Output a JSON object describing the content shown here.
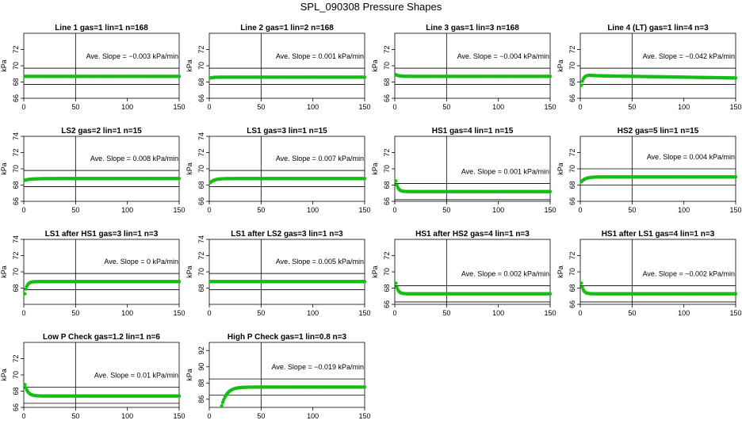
{
  "figure_title": "SPL_090308  Pressure Shapes",
  "colors": {
    "points": "#00cc00",
    "point_edge": "#33aa33",
    "lines": "#000000"
  },
  "chart_data": [
    {
      "type": "scatter",
      "title": "Line 1 gas=1 lin=1 n=168",
      "ylabel": "kPa",
      "xlim": [
        0,
        150
      ],
      "ylim": [
        66,
        74
      ],
      "yticks": [
        66,
        68,
        70,
        72
      ],
      "xticks": [
        0,
        50,
        100,
        150
      ],
      "annotation": "Ave. Slope = -0.003 kPa/min",
      "hlines": [
        67.7,
        69.7
      ],
      "vline": 50,
      "curve": {
        "x0": 1,
        "x1": 150,
        "base": 68.7,
        "start": 68.7,
        "tau": 3
      }
    },
    {
      "type": "scatter",
      "title": "Line 2 gas=1 lin=2 n=168",
      "ylabel": "kPa",
      "xlim": [
        0,
        150
      ],
      "ylim": [
        66,
        74
      ],
      "yticks": [
        66,
        68,
        70,
        72
      ],
      "xticks": [
        0,
        50,
        100,
        150
      ],
      "annotation": "Ave. Slope = 0.001  kPa/min",
      "hlines": [
        67.7,
        69.7
      ],
      "vline": 50,
      "curve": {
        "x0": 1,
        "x1": 150,
        "base": 68.6,
        "start": 68.5,
        "tau": 3
      }
    },
    {
      "type": "scatter",
      "title": "Line 3 gas=1 lin=3 n=168",
      "ylabel": "kPa",
      "xlim": [
        0,
        150
      ],
      "ylim": [
        66,
        74
      ],
      "yticks": [
        66,
        68,
        70,
        72
      ],
      "xticks": [
        0,
        50,
        100,
        150
      ],
      "annotation": "Ave. Slope = -0.004  kPa/min",
      "hlines": [
        67.7,
        69.7
      ],
      "vline": 50,
      "curve": {
        "x0": 1,
        "x1": 150,
        "base": 68.7,
        "start": 68.9,
        "tau": 3
      }
    },
    {
      "type": "scatter",
      "title": "Line 4 (LT) gas=1 lin=4 n=3",
      "ylabel": "kPa",
      "xlim": [
        0,
        150
      ],
      "ylim": [
        66,
        74
      ],
      "yticks": [
        66,
        68,
        70,
        72
      ],
      "xticks": [
        0,
        50,
        100,
        150
      ],
      "annotation": "Ave. Slope = -0.042  kPa/min",
      "hlines": [
        67.7,
        69.7
      ],
      "vline": 50,
      "curve": {
        "x0": 1,
        "x1": 150,
        "base": 68.8,
        "start": 67.6,
        "tau": 3,
        "overshoot": 0.4,
        "drift": -0.3
      }
    },
    {
      "type": "scatter",
      "title": "LS2 gas=2 lin=1 n=15",
      "ylabel": "kPa",
      "xlim": [
        0,
        150
      ],
      "ylim": [
        66,
        74
      ],
      "yticks": [
        66,
        68,
        70,
        72,
        74
      ],
      "xticks": [
        0,
        50,
        100,
        150
      ],
      "annotation": "Ave. Slope = 0.008  kPa/min",
      "hlines": [
        67.8,
        69.8
      ],
      "vline": 50,
      "curve": {
        "x0": 1,
        "x1": 150,
        "base": 68.8,
        "start": 68.6,
        "tau": 6
      }
    },
    {
      "type": "scatter",
      "title": "LS1 gas=3 lin=1 n=15",
      "ylabel": "kPa",
      "xlim": [
        0,
        150
      ],
      "ylim": [
        66,
        74
      ],
      "yticks": [
        66,
        68,
        70,
        72,
        74
      ],
      "xticks": [
        0,
        50,
        100,
        150
      ],
      "annotation": "Ave. Slope = 0.007  kPa/min",
      "hlines": [
        67.8,
        69.8
      ],
      "vline": 50,
      "curve": {
        "x0": 1,
        "x1": 150,
        "base": 68.8,
        "start": 68.3,
        "tau": 4
      }
    },
    {
      "type": "scatter",
      "title": "HS1 gas=4 lin=1 n=15",
      "ylabel": "kPa",
      "xlim": [
        0,
        150
      ],
      "ylim": [
        66,
        74
      ],
      "yticks": [
        66,
        68,
        70,
        72
      ],
      "xticks": [
        0,
        50,
        100,
        150
      ],
      "annotation": "Ave. Slope = 0.001  kPa/min",
      "hlines": [
        66.2,
        68.2
      ],
      "vline": 50,
      "curve": {
        "x0": 1,
        "x1": 150,
        "base": 67.2,
        "start": 68.5,
        "tau": 2
      }
    },
    {
      "type": "scatter",
      "title": "HS2 gas=5 lin=1 n=15",
      "ylabel": "kPa",
      "xlim": [
        0,
        150
      ],
      "ylim": [
        66,
        74
      ],
      "yticks": [
        66,
        68,
        70,
        72
      ],
      "xticks": [
        0,
        50,
        100,
        150
      ],
      "annotation": "Ave. Slope = 0.004  kPa/min",
      "hlines": [
        68.0,
        70.0
      ],
      "vline": 50,
      "curve": {
        "x0": 1,
        "x1": 150,
        "base": 69.0,
        "start": 68.4,
        "tau": 4
      }
    },
    {
      "type": "scatter",
      "title": "LS1 after HS1 gas=3 lin=1 n=3",
      "ylabel": "kPa",
      "xlim": [
        0,
        150
      ],
      "ylim": [
        66,
        74
      ],
      "yticks": [
        68,
        70,
        72,
        74
      ],
      "xticks": [
        0,
        50,
        100,
        150
      ],
      "annotation": "Ave. Slope = 0 kPa/min",
      "hlines": [
        67.8,
        69.8
      ],
      "vline": 50,
      "curve": {
        "x0": 1,
        "x1": 150,
        "base": 68.8,
        "start": 67.3,
        "tau": 2
      }
    },
    {
      "type": "scatter",
      "title": "LS1 after LS2 gas=3 lin=1 n=3",
      "ylabel": "kPa",
      "xlim": [
        0,
        150
      ],
      "ylim": [
        66,
        74
      ],
      "yticks": [
        68,
        70,
        72,
        74
      ],
      "xticks": [
        0,
        50,
        100,
        150
      ],
      "annotation": "Ave. Slope = 0.005  kPa/min",
      "hlines": [
        67.8,
        69.8
      ],
      "vline": 50,
      "curve": {
        "x0": 1,
        "x1": 150,
        "base": 68.8,
        "start": 68.8,
        "tau": 3
      }
    },
    {
      "type": "scatter",
      "title": "HS1 after HS2 gas=4 lin=1 n=3",
      "ylabel": "kPa",
      "xlim": [
        0,
        150
      ],
      "ylim": [
        66,
        74
      ],
      "yticks": [
        66,
        68,
        70,
        72
      ],
      "xticks": [
        0,
        50,
        100,
        150
      ],
      "annotation": "Ave. Slope = 0.002  kPa/min",
      "hlines": [
        66.3,
        68.3
      ],
      "vline": 50,
      "curve": {
        "x0": 1,
        "x1": 150,
        "base": 67.3,
        "start": 68.6,
        "tau": 2
      }
    },
    {
      "type": "scatter",
      "title": "HS1 after LS1 gas=4 lin=1 n=3",
      "ylabel": "kPa",
      "xlim": [
        0,
        150
      ],
      "ylim": [
        66,
        74
      ],
      "yticks": [
        66,
        68,
        70,
        72
      ],
      "xticks": [
        0,
        50,
        100,
        150
      ],
      "annotation": "Ave. Slope = -0.002  kPa/min",
      "hlines": [
        66.3,
        68.3
      ],
      "vline": 50,
      "curve": {
        "x0": 1,
        "x1": 150,
        "base": 67.3,
        "start": 68.6,
        "tau": 2
      }
    },
    {
      "type": "scatter",
      "title": "Low P Check gas=1.2 lin=1 n=6",
      "ylabel": "kPa",
      "xlim": [
        0,
        150
      ],
      "ylim": [
        66,
        74
      ],
      "yticks": [
        66,
        68,
        70,
        72
      ],
      "xticks": [
        0,
        50,
        100,
        150
      ],
      "annotation": "Ave. Slope = 0.01 kPa/min",
      "hlines": [
        66.5,
        68.5
      ],
      "vline": 50,
      "curve": {
        "x0": 1,
        "x1": 150,
        "base": 67.4,
        "start": 68.8,
        "tau": 3
      }
    },
    {
      "type": "scatter",
      "title": "High P Check gas=1 lin=0.8 n=3",
      "ylabel": "kPa",
      "xlim": [
        0,
        150
      ],
      "ylim": [
        85,
        93
      ],
      "yticks": [
        86,
        88,
        90,
        92
      ],
      "xticks": [
        0,
        50,
        100,
        150
      ],
      "annotation": "Ave. Slope = -0.019  kPa/min",
      "hlines": [
        86.5,
        88.5
      ],
      "vline": 50,
      "curve": {
        "x0": 12,
        "x1": 150,
        "base": 87.5,
        "start": 85.2,
        "tau": 5
      }
    }
  ]
}
